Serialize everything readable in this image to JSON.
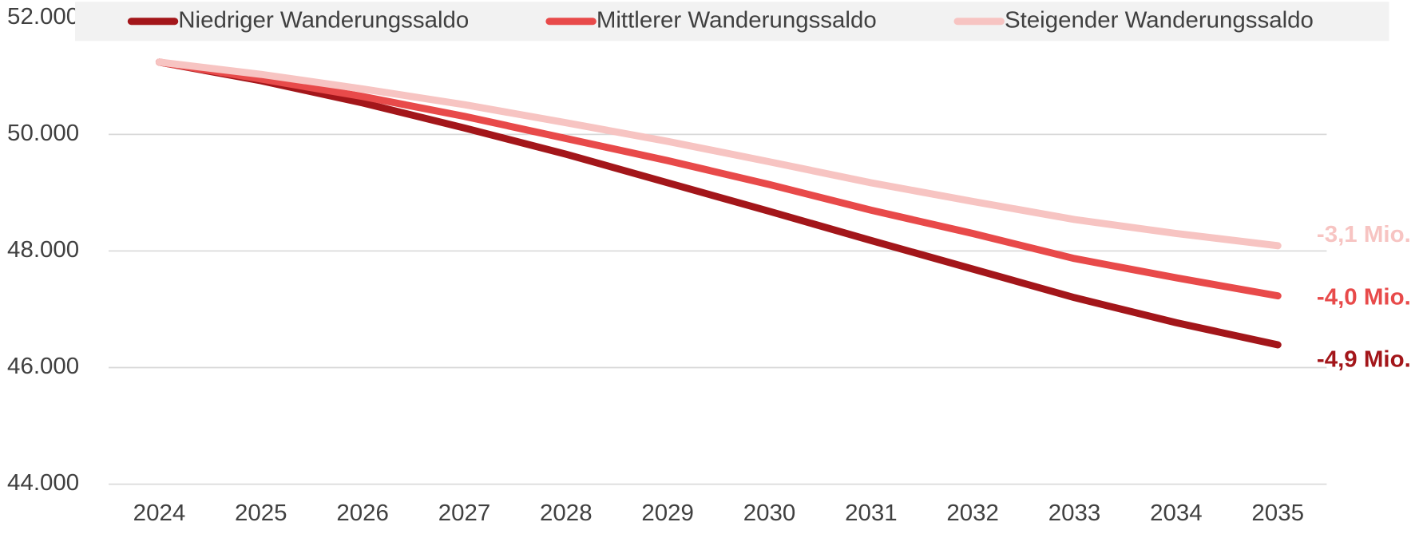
{
  "chart_data": {
    "type": "line",
    "categories": [
      "2024",
      "2025",
      "2026",
      "2027",
      "2028",
      "2029",
      "2030",
      "2031",
      "2032",
      "2033",
      "2034",
      "2035"
    ],
    "series": [
      {
        "name": "Niedriger Wanderungssaldo",
        "color": "#a3161a",
        "end_label": "-4,9 Mio.",
        "values": [
          51240,
          50920,
          50540,
          50110,
          49660,
          49170,
          48680,
          48180,
          47690,
          47200,
          46770,
          46390
        ]
      },
      {
        "name": "Mittlerer Wanderungssaldo",
        "color": "#e84a4a",
        "end_label": "-4,0 Mio.",
        "values": [
          51240,
          50950,
          50650,
          50310,
          49930,
          49550,
          49140,
          48700,
          48300,
          47870,
          47540,
          47230
        ]
      },
      {
        "name": "Steigender Wanderungssaldo",
        "color": "#f7c4c2",
        "end_label": "-3,1 Mio.",
        "values": [
          51240,
          51030,
          50780,
          50510,
          50200,
          49880,
          49530,
          49170,
          48850,
          48540,
          48300,
          48090
        ]
      }
    ],
    "ylim": [
      44000,
      52000
    ],
    "yticks": [
      {
        "value": 44000,
        "label": "44.000"
      },
      {
        "value": 46000,
        "label": "46.000"
      },
      {
        "value": 48000,
        "label": "48.000"
      },
      {
        "value": 50000,
        "label": "50.000"
      },
      {
        "value": 52000,
        "label": "52.000"
      }
    ],
    "grid": true,
    "legend": "top"
  }
}
